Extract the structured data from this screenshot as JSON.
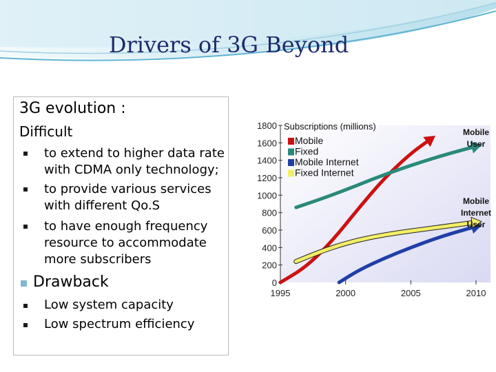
{
  "slide": {
    "title": "Drivers of 3G Beyond"
  },
  "text_box": {
    "heading": "3G evolution  :",
    "subheading": "Difficult",
    "difficult_items": [
      [
        "to extend to higher data rate",
        "with CDMA only technology;"
      ],
      [
        "to provide various services",
        "with different Qo.S"
      ],
      [
        "to have enough frequency",
        "resource to accommodate",
        "more subscribers"
      ]
    ],
    "drawback_heading": "Drawback",
    "drawback_items": [
      "Low system capacity",
      "Low spectrum efficiency"
    ]
  },
  "chart_data": {
    "type": "line",
    "title": "Subscriptions (millions)",
    "xlabel": "",
    "ylabel": "",
    "xlim": [
      1995,
      2010
    ],
    "ylim": [
      0,
      1800
    ],
    "x_ticks": [
      1995,
      2000,
      2005,
      2010
    ],
    "y_ticks": [
      0,
      200,
      400,
      600,
      800,
      1000,
      1200,
      1400,
      1600,
      1800
    ],
    "legend": {
      "placement": "top-left",
      "entries": [
        {
          "name": "Mobile",
          "color": "#cc1111"
        },
        {
          "name": "Fixed",
          "color": "#2a8a7a"
        },
        {
          "name": "Mobile Internet",
          "color": "#1f3fa8"
        },
        {
          "name": "Fixed Internet",
          "color": "#f2ee66"
        }
      ]
    },
    "series": [
      {
        "name": "Mobile",
        "color": "#cc1111",
        "x": [
          1995,
          1997,
          1999,
          2001,
          2003,
          2005,
          2006.5
        ],
        "y": [
          0,
          180,
          480,
          850,
          1200,
          1480,
          1640
        ]
      },
      {
        "name": "Fixed",
        "color": "#2a8a7a",
        "x": [
          1996.2,
          1998,
          2000,
          2002,
          2004,
          2006,
          2008,
          2010
        ],
        "y": [
          860,
          950,
          1060,
          1180,
          1290,
          1390,
          1480,
          1560
        ]
      },
      {
        "name": "Mobile Internet",
        "color": "#1f3fa8",
        "x": [
          1999.5,
          2001,
          2003,
          2005,
          2007,
          2009,
          2010
        ],
        "y": [
          0,
          140,
          280,
          400,
          510,
          600,
          640
        ]
      },
      {
        "name": "Fixed Internet",
        "color": "#f2ee66",
        "x": [
          1996.2,
          1998,
          2000,
          2002,
          2004,
          2006,
          2008,
          2010
        ],
        "y": [
          240,
          350,
          450,
          520,
          570,
          610,
          650,
          690
        ]
      }
    ],
    "annotations": [
      {
        "text": [
          "Mobile",
          "User"
        ],
        "color": "#cc1111"
      },
      {
        "text": [
          "Mobile",
          "Internet",
          "User"
        ],
        "color": "#1f3fa8"
      }
    ]
  }
}
